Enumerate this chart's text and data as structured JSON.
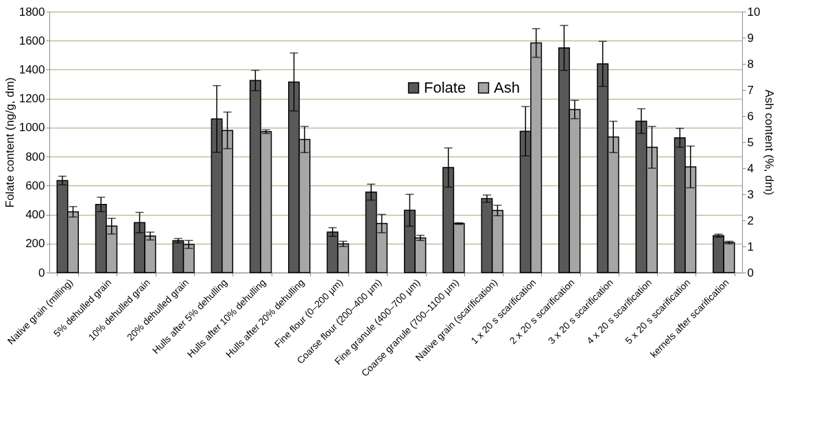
{
  "chart_data": {
    "type": "bar",
    "ylabel": "Folate content (ng/g, dm)",
    "y2label": "Ash content (%,  dm)",
    "categories": [
      "Native grain (milling)",
      "5% dehulled grain",
      "10% dehulled grain",
      "20% dehulled grain",
      "Hulls after 5% dehulling",
      "Hulls after 10% dehulling",
      "Hulls after 20% dehulling",
      "Fine flour (0–200 µm)",
      "Coarse flour (200–400 µm)",
      "Fine granule (400–700 µm)",
      "Coarse granule (700–1100 µm)",
      "Native grain (scarification)",
      "1 x 20 s scarification",
      "2 x 20 s scarification",
      "3 x 20 s scarification",
      "4 x 20 s scarification",
      "5 x 20 s scarification",
      "kernels after scarification"
    ],
    "series": [
      {
        "name": "Folate",
        "color": "#595959",
        "values": [
          635,
          470,
          345,
          220,
          1060,
          1325,
          1315,
          280,
          555,
          430,
          725,
          510,
          975,
          1550,
          1440,
          1045,
          930,
          255
        ],
        "errors": [
          30,
          50,
          70,
          15,
          230,
          70,
          200,
          30,
          55,
          110,
          135,
          25,
          170,
          155,
          155,
          85,
          65,
          10
        ]
      },
      {
        "name": "Ash",
        "color": "#a6a6a6",
        "axis": "y2",
        "values": [
          2.33,
          1.78,
          1.4,
          1.08,
          5.45,
          5.4,
          5.1,
          1.1,
          1.88,
          1.33,
          1.88,
          2.38,
          8.8,
          6.25,
          5.2,
          4.8,
          4.05,
          1.15
        ],
        "errors": [
          0.2,
          0.3,
          0.15,
          0.15,
          0.7,
          0.07,
          0.5,
          0.1,
          0.35,
          0.1,
          0.03,
          0.2,
          0.55,
          0.35,
          0.6,
          0.8,
          0.8,
          0.05
        ]
      }
    ],
    "ylim": [
      0,
      1800
    ],
    "yticks": [
      0,
      200,
      400,
      600,
      800,
      1000,
      1200,
      1400,
      1600,
      1800
    ],
    "y2lim": [
      0,
      10
    ],
    "y2ticks": [
      0,
      1,
      2,
      3,
      4,
      5,
      6,
      7,
      8,
      9,
      10
    ],
    "grid": "y",
    "legend": "top"
  }
}
